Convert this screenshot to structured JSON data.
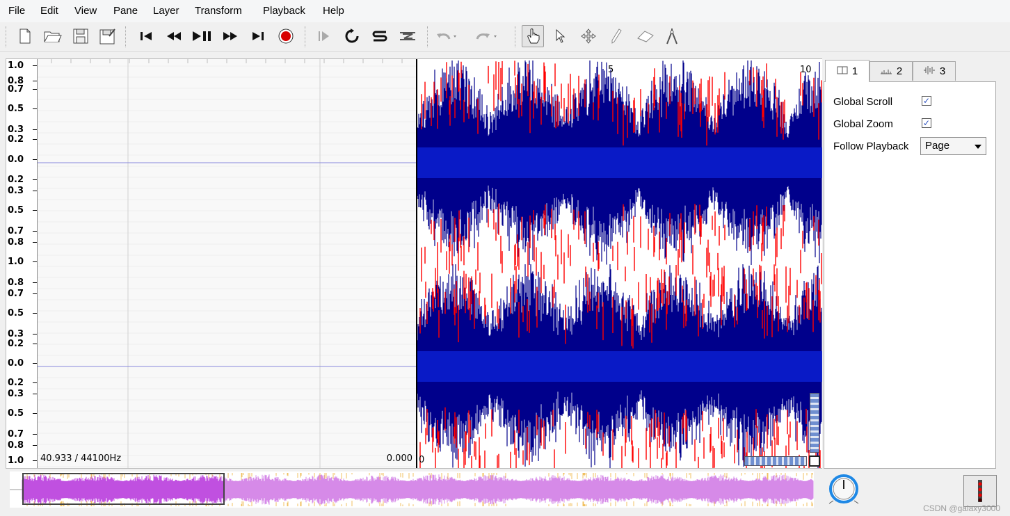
{
  "menu": [
    "File",
    "Edit",
    "View",
    "Pane",
    "Layer",
    "Transform",
    "Playback",
    "Help"
  ],
  "toolbar": {
    "file": [
      "new-icon",
      "open-icon",
      "save-icon",
      "save-as-icon"
    ],
    "transport": [
      "rewind-start-icon",
      "rewind-icon",
      "play-pause-icon",
      "fast-forward-icon",
      "fast-forward-end-icon",
      "record-icon"
    ],
    "play_mode": [
      "play-selection-icon",
      "loop-icon",
      "solo-icon",
      "normalize-icon"
    ],
    "edit": [
      "undo-icon",
      "redo-icon"
    ],
    "tools": [
      "navigate-icon",
      "select-icon",
      "move-icon",
      "draw-icon",
      "erase-icon",
      "measure-icon"
    ]
  },
  "scale_ticks": [
    "1.0",
    "0.8",
    "0.7",
    "0.5",
    "0.3",
    "0.2",
    "0.0",
    "0.2",
    "0.3",
    "0.5",
    "0.7",
    "0.8",
    "1.0",
    "0.8",
    "0.7",
    "0.5",
    "0.3",
    "0.2",
    "0.0",
    "0.2",
    "0.3",
    "0.5",
    "0.7",
    "0.8",
    "1.0"
  ],
  "pane": {
    "sample_rate_label": "40.933 / 44100Hz",
    "time_left_label": "0.000",
    "ruler_labels": [
      "0",
      "5",
      "10"
    ]
  },
  "colors": {
    "waveform": "#00008b",
    "peak": "#ff0000",
    "overview": "#d68ae8",
    "overview_selection": "#c050e0"
  },
  "side_panel": {
    "tabs": [
      {
        "label": "1",
        "icon": "pane-icon"
      },
      {
        "label": "2",
        "icon": "spectrum-icon"
      },
      {
        "label": "3",
        "icon": "waveform-icon"
      }
    ],
    "global_scroll": {
      "label": "Global Scroll",
      "checked": true
    },
    "global_zoom": {
      "label": "Global Zoom",
      "checked": true
    },
    "follow_playback": {
      "label": "Follow Playback",
      "value": "Page"
    }
  },
  "watermark": "CSDN @galaxy3000"
}
